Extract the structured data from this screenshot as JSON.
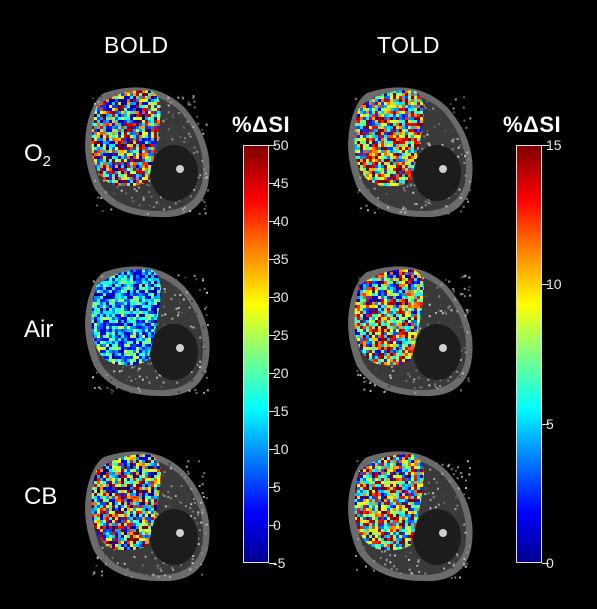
{
  "columns": [
    {
      "title": "BOLD"
    },
    {
      "title": "TOLD"
    }
  ],
  "rows": [
    {
      "label_main": "O",
      "label_sub": "2"
    },
    {
      "label_main": "Air",
      "label_sub": ""
    },
    {
      "label_main": "CB",
      "label_sub": ""
    }
  ],
  "colorbars": [
    {
      "title": "%ΔSI",
      "min": -5,
      "max": 50,
      "ticks": [
        "50",
        "45",
        "40",
        "35",
        "30",
        "25",
        "20",
        "15",
        "10",
        "5",
        "0",
        "-5"
      ],
      "tick_values": [
        50,
        45,
        40,
        35,
        30,
        25,
        20,
        15,
        10,
        5,
        0,
        -5
      ]
    },
    {
      "title": "%ΔSI",
      "min": 0,
      "max": 15,
      "ticks": [
        "15",
        "10",
        "5",
        "0"
      ],
      "tick_values": [
        15,
        10,
        5,
        0
      ]
    }
  ],
  "colors": {
    "background": "#000000",
    "colormap": "jet"
  }
}
